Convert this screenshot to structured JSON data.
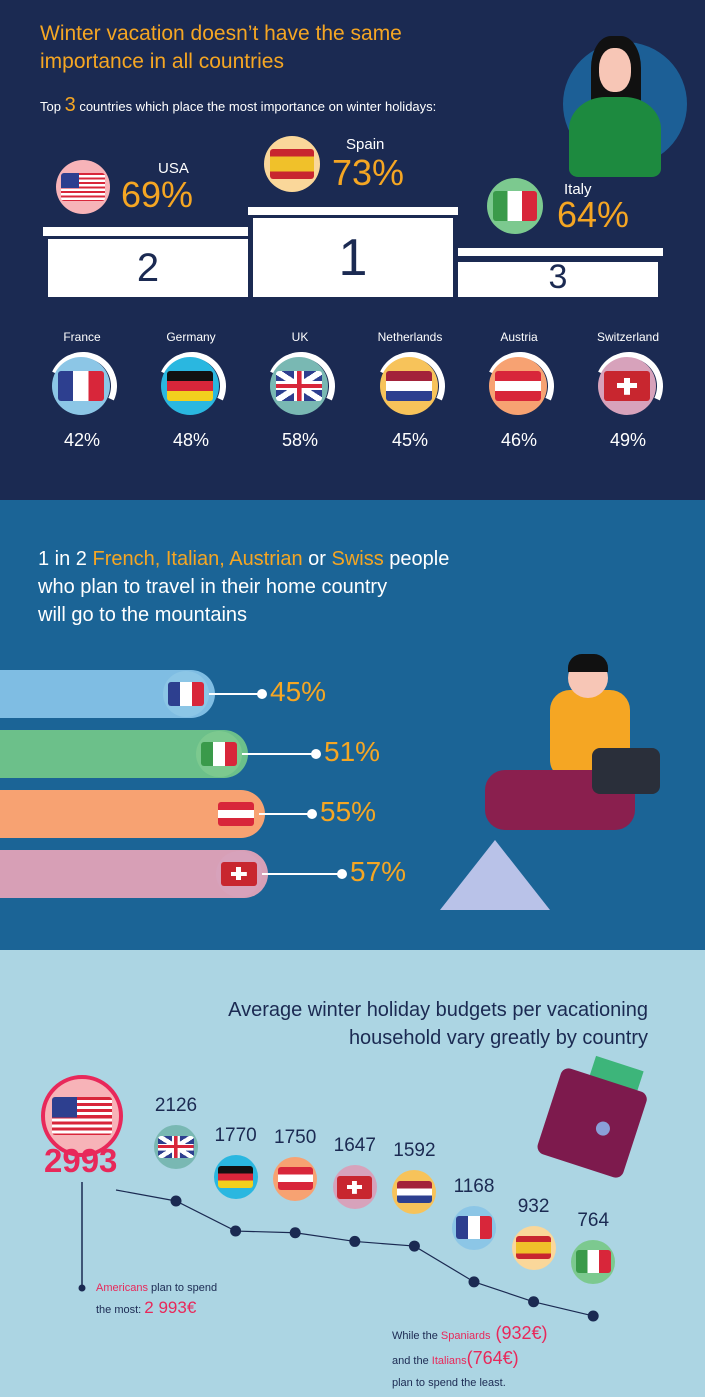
{
  "section1": {
    "title_line1": "Winter vacation doesn’t have the same",
    "title_line2": "importance in all countries",
    "subtitle_pre": "Top ",
    "subtitle_num": "3",
    "subtitle_post": " countries which place the most importance on winter holidays:",
    "podium": [
      {
        "rank": "2",
        "country": "USA",
        "pct": "69%",
        "flag": "us"
      },
      {
        "rank": "1",
        "country": "Spain",
        "pct": "73%",
        "flag": "es"
      },
      {
        "rank": "3",
        "country": "Italy",
        "pct": "64%",
        "flag": "it"
      }
    ],
    "others": [
      {
        "country": "France",
        "pct": "42%",
        "flag": "fr"
      },
      {
        "country": "Germany",
        "pct": "48%",
        "flag": "de"
      },
      {
        "country": "UK",
        "pct": "58%",
        "flag": "uk"
      },
      {
        "country": "Netherlands",
        "pct": "45%",
        "flag": "nl"
      },
      {
        "country": "Austria",
        "pct": "46%",
        "flag": "at"
      },
      {
        "country": "Switzerland",
        "pct": "49%",
        "flag": "ch"
      }
    ]
  },
  "section2": {
    "l1_a": "1 in 2 ",
    "l1_b": "French, Italian, Austrian",
    "l1_c": " or ",
    "l1_d": "Swiss",
    "l1_e": " people",
    "l2": "who plan to travel in their home country",
    "l3": "will go to the mountains",
    "bars": [
      {
        "country": "France",
        "pct": "45%",
        "flag": "fr",
        "color": "#7fbde3"
      },
      {
        "country": "Italy",
        "pct": "51%",
        "flag": "it",
        "color": "#6cc08a"
      },
      {
        "country": "Austria",
        "pct": "55%",
        "flag": "at",
        "color": "#f7a272"
      },
      {
        "country": "Switzerland",
        "pct": "57%",
        "flag": "ch",
        "color": "#d79fb6"
      }
    ]
  },
  "section3": {
    "title_line1": "Average winter holiday budgets per vacationing",
    "title_line2": "household vary greatly by country",
    "us_value": "2993",
    "note1_a": "Americans",
    "note1_b": " plan to spend",
    "note1_c": "the most: ",
    "note1_d": "2 993€",
    "note2_a": "While the ",
    "note2_b": "Spaniards",
    "note2_c": " (932€)",
    "note2_d": "and the ",
    "note2_e": "Italians",
    "note2_f": "(764€)",
    "note2_g": "plan to spend the least."
  },
  "chart_data": [
    {
      "type": "bar",
      "title": "Top 3 countries which place the most importance on winter holidays:",
      "categories": [
        "USA",
        "Spain",
        "Italy",
        "France",
        "Germany",
        "UK",
        "Netherlands",
        "Austria",
        "Switzerland"
      ],
      "values": [
        69,
        73,
        64,
        42,
        48,
        58,
        45,
        46,
        49
      ],
      "unit": "%"
    },
    {
      "type": "bar",
      "categories": [
        "France",
        "Italy",
        "Austria",
        "Switzerland"
      ],
      "values": [
        45,
        51,
        55,
        57
      ],
      "unit": "%"
    },
    {
      "type": "line",
      "title": "Average winter holiday budgets per vacationing household vary greatly by country",
      "categories": [
        "USA",
        "UK",
        "Germany",
        "Austria",
        "Switzerland",
        "Netherlands",
        "France",
        "Spain",
        "Italy"
      ],
      "values": [
        2993,
        2126,
        1770,
        1750,
        1647,
        1592,
        1168,
        932,
        764
      ],
      "unit": "€",
      "flags": [
        "us",
        "uk",
        "de",
        "at",
        "ch",
        "nl",
        "fr",
        "es",
        "it"
      ]
    }
  ],
  "colors": {
    "accent": "#f5a623",
    "highlight": "#e8285a",
    "navy": "#1b2a52"
  }
}
